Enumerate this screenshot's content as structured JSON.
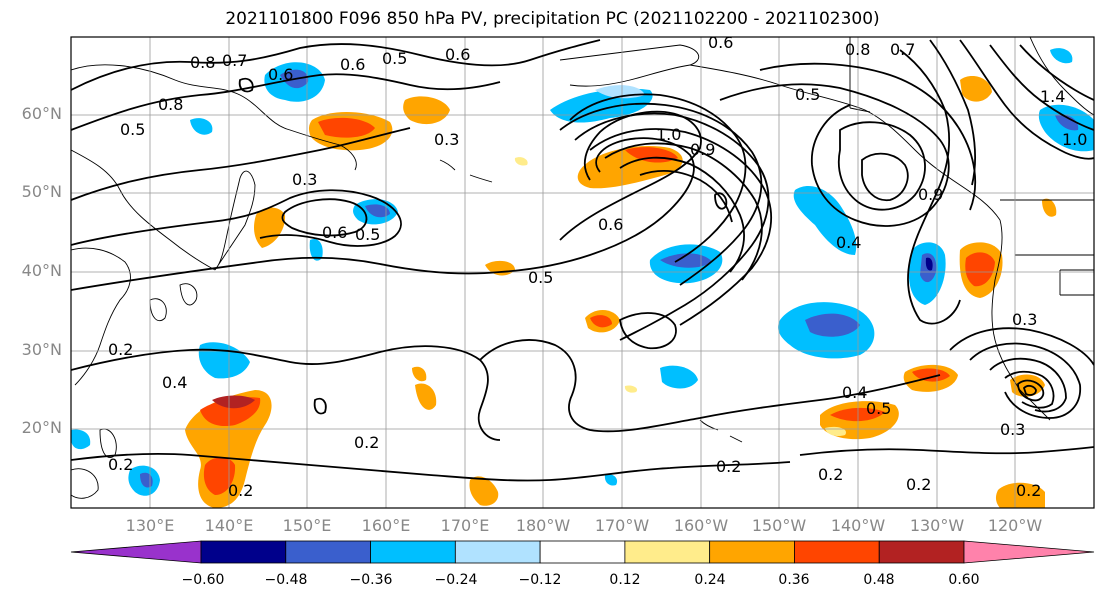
{
  "title": "2021101800 F096 850 hPa PV, precipitation PC (2021102200 - 2021102300)",
  "lat_labels": [
    "60°N",
    "50°N",
    "40°N",
    "30°N",
    "20°N"
  ],
  "lon_labels": [
    "130°E",
    "140°E",
    "150°E",
    "160°E",
    "170°E",
    "180°W",
    "170°W",
    "160°W",
    "150°W",
    "140°W",
    "130°W",
    "120°W"
  ],
  "colorbar": {
    "ticks": [
      "−0.60",
      "−0.48",
      "−0.36",
      "−0.24",
      "−0.12",
      "0.12",
      "0.24",
      "0.36",
      "0.48",
      "0.60"
    ],
    "colors": [
      "#9932cc",
      "#00008b",
      "#3a5fcd",
      "#00bfff",
      "#b0e2ff",
      "#ffffff",
      "#ffec8b",
      "#ffa500",
      "#ff4500",
      "#b22222",
      "#ff82ab"
    ]
  },
  "contour_labels": [
    "0.8",
    "0.7",
    "0.6",
    "0.5",
    "0.6",
    "0.8",
    "0.6",
    "0.3",
    "0.5",
    "0.3",
    "0.6",
    "0.5",
    "1.0",
    "0.9",
    "0.6",
    "0.5",
    "0.4",
    "0.5",
    "0.6",
    "0.9",
    "0.8",
    "0.7",
    "1.0",
    "1.4",
    "0.2",
    "0.4",
    "0.2",
    "0.2",
    "0.2",
    "0.4",
    "0.5",
    "0.3",
    "0.2",
    "0.2",
    "0.2",
    "0.3",
    "0.2"
  ]
}
